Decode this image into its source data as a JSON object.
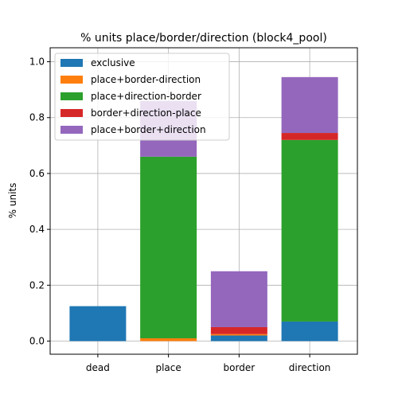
{
  "chart_data": {
    "type": "bar",
    "stacked": true,
    "title": "% units place/border/direction (block4_pool)",
    "xlabel": "",
    "ylabel": "% units",
    "categories": [
      "dead",
      "place",
      "border",
      "direction"
    ],
    "ylim": [
      -0.047,
      1.05
    ],
    "yticks": [
      0.0,
      0.2,
      0.4,
      0.6,
      0.8,
      1.0
    ],
    "ytick_labels": [
      "0.0",
      "0.2",
      "0.4",
      "0.6",
      "0.8",
      "1.0"
    ],
    "grid": true,
    "legend_position": "top-left",
    "series": [
      {
        "name": "exclusive",
        "color": "#1f77b4",
        "values": [
          0.125,
          0.0,
          0.02,
          0.07
        ]
      },
      {
        "name": "place+border-direction",
        "color": "#ff7f0e",
        "values": [
          0.0,
          0.01,
          0.005,
          0.0
        ]
      },
      {
        "name": "place+direction-border",
        "color": "#2ca02c",
        "values": [
          0.0,
          0.65,
          0.0,
          0.65
        ]
      },
      {
        "name": "border+direction-place",
        "color": "#d62728",
        "values": [
          0.0,
          0.0,
          0.025,
          0.025
        ]
      },
      {
        "name": "place+border+direction",
        "color": "#9467bd",
        "values": [
          0.0,
          0.2,
          0.2,
          0.2
        ]
      }
    ]
  }
}
